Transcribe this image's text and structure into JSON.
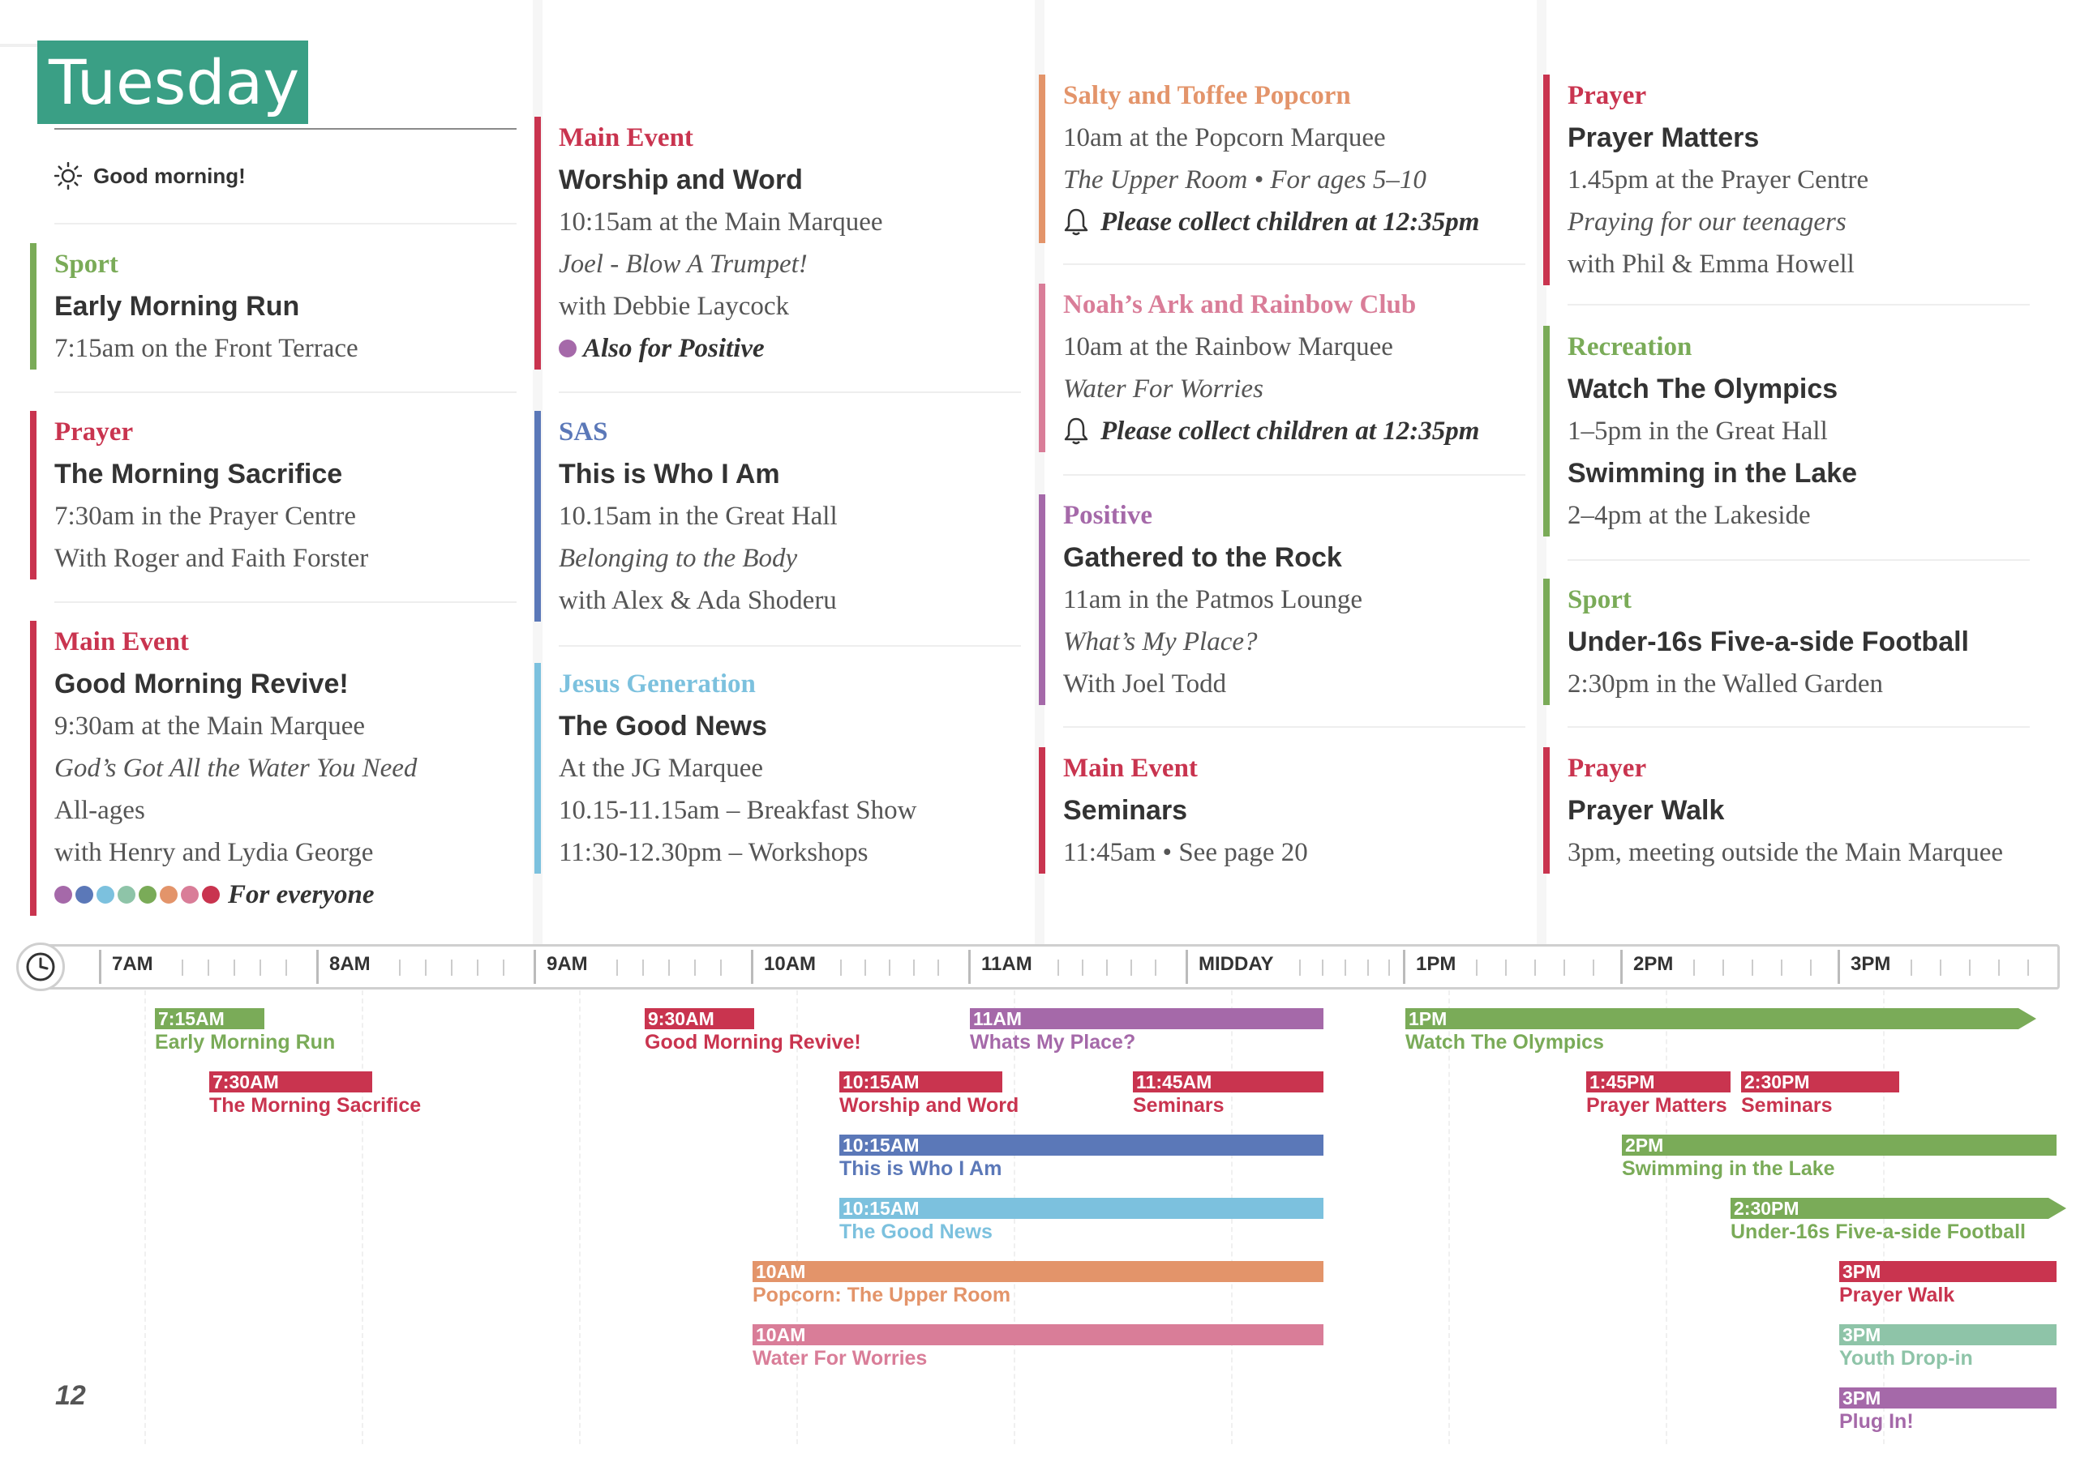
{
  "header": {
    "day": "Tuesday",
    "greeting": "Good morning!"
  },
  "colors": {
    "sport": "#7aab58",
    "prayer": "#c9344f",
    "main": "#c9344f",
    "sas": "#5b78b8",
    "jesus_generation": "#7cc1de",
    "popcorn": "#e3946a",
    "noahs_ark": "#d97d98",
    "positive": "#a569a9",
    "recreation": "#7aab58",
    "youth": "#8ec4a8"
  },
  "col1": {
    "e1": {
      "cat": "Sport",
      "title": "Early Morning Run",
      "l1": "7:15am on the Front Terrace"
    },
    "e2": {
      "cat": "Prayer",
      "title": "The Morning Sacrifice",
      "l1": "7:30am in the Prayer Centre",
      "l2": "With Roger and Faith Forster"
    },
    "e3": {
      "cat": "Main Event",
      "title": "Good Morning Revive!",
      "l1": "9:30am at the Main Marquee",
      "l2": "God’s Got All the Water You Need",
      "l3": "All-ages",
      "l4": "with Henry and Lydia George",
      "note": "For everyone"
    }
  },
  "col2": {
    "e1": {
      "cat": "Main Event",
      "title": "Worship and Word",
      "l1": "10:15am at the Main Marquee",
      "l2": "Joel - Blow A Trumpet!",
      "l3": "with Debbie Laycock",
      "note": "Also for Positive"
    },
    "e2": {
      "cat": "SAS",
      "title": "This is Who I Am",
      "l1": "10.15am in the Great Hall",
      "l2": "Belonging to the Body",
      "l3": "with Alex & Ada Shoderu"
    },
    "e3": {
      "cat": "Jesus Generation",
      "title": "The Good News",
      "l1": "At the JG Marquee",
      "l2": "10.15-11.15am – Breakfast Show",
      "l3": "11:30-12.30pm – Workshops"
    }
  },
  "col3": {
    "e1": {
      "cat": "Salty and Toffee Popcorn",
      "l1": "10am at the Popcorn Marquee",
      "l2": "The Upper Room  •  For ages 5–10",
      "note": "Please collect children at 12:35pm"
    },
    "e2": {
      "cat": "Noah’s Ark and Rainbow Club",
      "l1": "10am at the Rainbow Marquee",
      "l2": "Water For Worries",
      "note": "Please collect children at 12:35pm"
    },
    "e3": {
      "cat": "Positive",
      "title": "Gathered to the Rock",
      "l1": "11am in the Patmos Lounge",
      "l2": "What’s My Place?",
      "l3": "With Joel Todd"
    },
    "e4": {
      "cat": "Main Event",
      "title": "Seminars",
      "l1": "11:45am  •  See page 20"
    }
  },
  "col4": {
    "e1": {
      "cat": "Prayer",
      "title": "Prayer Matters",
      "l1": "1.45pm at the Prayer Centre",
      "l2": "Praying for our teenagers",
      "l3": "with Phil & Emma Howell"
    },
    "e2": {
      "cat": "Recreation",
      "title": "Watch The Olympics",
      "l1": "1–5pm in the Great Hall",
      "title2": "Swimming in the Lake",
      "l2": "2–4pm at the Lakeside"
    },
    "e3": {
      "cat": "Sport",
      "title": "Under-16s Five-a-side Football",
      "l1": "2:30pm in the Walled Garden"
    },
    "e4": {
      "cat": "Prayer",
      "title": "Prayer Walk",
      "l1": "3pm, meeting outside the Main Marquee"
    }
  },
  "timeline": {
    "hours": [
      "7AM",
      "8AM",
      "9AM",
      "10AM",
      "11AM",
      "MIDDAY",
      "1PM",
      "2PM",
      "3PM"
    ],
    "events": [
      {
        "time": "7:15AM",
        "name": "Early Morning Run"
      },
      {
        "time": "7:30AM",
        "name": "The Morning Sacrifice"
      },
      {
        "time": "9:30AM",
        "name": "Good Morning Revive!"
      },
      {
        "time": "11AM",
        "name": "Whats My Place?"
      },
      {
        "time": "10:15AM",
        "name": "Worship and Word"
      },
      {
        "time": "11:45AM",
        "name": "Seminars"
      },
      {
        "time": "10:15AM",
        "name": "This is Who I Am"
      },
      {
        "time": "10:15AM",
        "name": "The Good News"
      },
      {
        "time": "10AM",
        "name": "Popcorn: The Upper Room"
      },
      {
        "time": "10AM",
        "name": "Water For Worries"
      },
      {
        "time": "1PM",
        "name": "Watch The Olympics"
      },
      {
        "time": "1:45PM",
        "name": "Prayer Matters"
      },
      {
        "time": "2:30PM",
        "name": "Seminars"
      },
      {
        "time": "2PM",
        "name": "Swimming in the Lake"
      },
      {
        "time": "2:30PM",
        "name": "Under-16s Five-a-side Football"
      },
      {
        "time": "3PM",
        "name": "Prayer Walk"
      },
      {
        "time": "3PM",
        "name": "Youth Drop-in"
      },
      {
        "time": "3PM",
        "name": "Plug In!"
      }
    ]
  },
  "page_number": "12"
}
